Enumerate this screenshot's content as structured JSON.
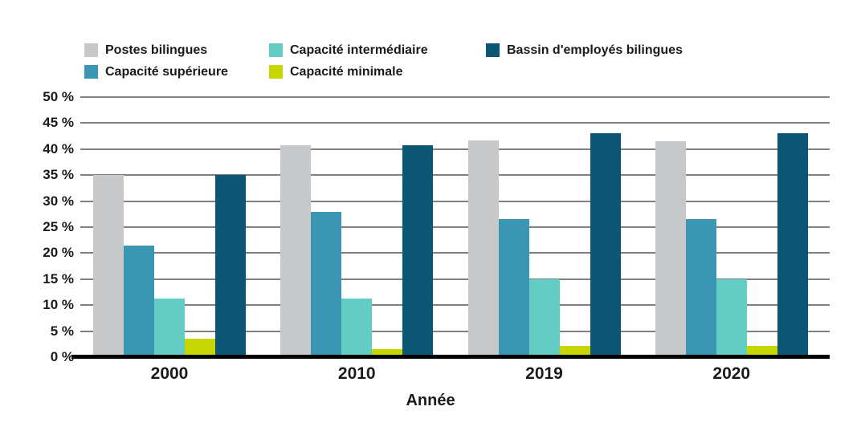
{
  "figure": {
    "background": "#FFFFFF"
  },
  "chart_data": {
    "type": "bar",
    "title": "",
    "xlabel": "Année",
    "ylabel": "",
    "categories": [
      "2000",
      "2010",
      "2019",
      "2020"
    ],
    "series": [
      {
        "name": "Postes bilingues",
        "color": "#C7C8C9",
        "values": [
          35,
          40.7,
          41.6,
          41.5
        ]
      },
      {
        "name": "Capacité supérieure",
        "color": "#3A96B2",
        "values": [
          21.4,
          27.9,
          26.5,
          26.5
        ]
      },
      {
        "name": "Capacité intermédiaire",
        "color": "#62CCC5",
        "values": [
          11.2,
          11.2,
          15,
          15
        ]
      },
      {
        "name": "Capacité minimale",
        "color": "#C7D500",
        "values": [
          3.5,
          1.5,
          2.1,
          2.1
        ]
      },
      {
        "name": "Bassin d'employés bilingues",
        "color": "#0B5575",
        "values": [
          35,
          40.7,
          43,
          43
        ]
      }
    ],
    "ylim": [
      0,
      50
    ],
    "ytick_step": 5,
    "ytick_labels": [
      "50 %",
      "45 %",
      "40 %",
      "35 %",
      "30 %",
      "25 %",
      "20 %",
      "15 %",
      "10 %",
      "5 %",
      "0 %"
    ],
    "grid": true,
    "legend_position": "top",
    "legend_columns": [
      [
        0,
        1
      ],
      [
        2,
        3
      ],
      [
        4
      ]
    ],
    "colors": {
      "gridline": "#808080",
      "axis_line": "#000000",
      "text": "#1A1A1A",
      "background": "#FFFFFF"
    }
  }
}
